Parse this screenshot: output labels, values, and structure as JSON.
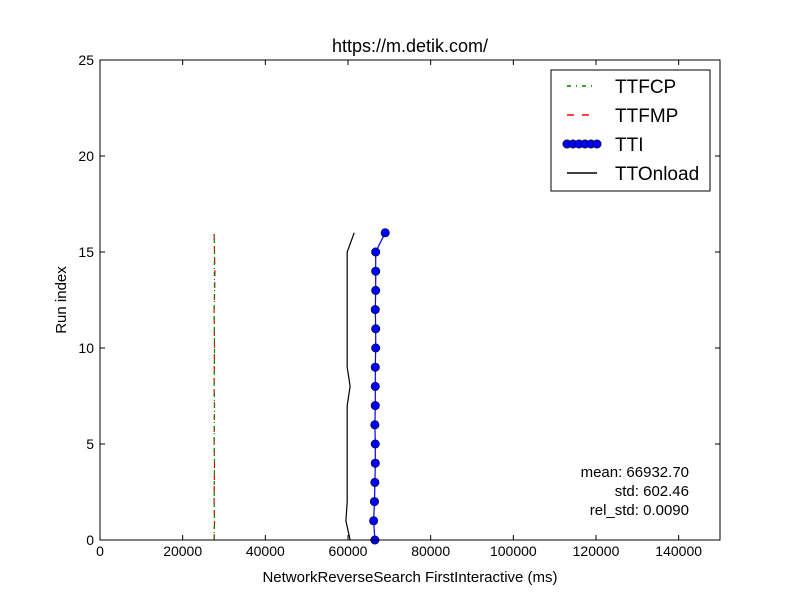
{
  "chart_data": {
    "type": "line",
    "title": "https://m.detik.com/",
    "xlabel": "NetworkReverseSearch FirstInteractive (ms)",
    "ylabel": "Run index",
    "xlim": [
      0,
      150000
    ],
    "ylim": [
      0,
      25
    ],
    "xticks": [
      0,
      20000,
      40000,
      60000,
      80000,
      100000,
      120000,
      140000
    ],
    "xtick_labels": [
      "0",
      "20000",
      "40000",
      "60000",
      "80000",
      "100000",
      "120000",
      "140000"
    ],
    "yticks": [
      0,
      5,
      10,
      15,
      20,
      25
    ],
    "ytick_labels": [
      "0",
      "5",
      "10",
      "15",
      "20",
      "25"
    ],
    "grid": false,
    "legend_position": "top-right",
    "series": [
      {
        "name": "TTFCP",
        "color": "#008000",
        "style": "dash-dot",
        "x": [
          27600,
          27700,
          27600,
          27650,
          27700,
          27600,
          27650,
          27700,
          27600,
          27650,
          27700,
          27650,
          27600,
          27700,
          27650,
          27700,
          27600
        ],
        "y": [
          0,
          1,
          2,
          3,
          4,
          5,
          6,
          7,
          8,
          9,
          10,
          11,
          12,
          13,
          14,
          15,
          16
        ]
      },
      {
        "name": "TTFMP",
        "color": "#ff0000",
        "style": "dashed",
        "x": [
          27600,
          27700,
          27600,
          27650,
          27700,
          27600,
          27650,
          27700,
          27600,
          27650,
          27700,
          27650,
          27600,
          27750,
          27800,
          27700,
          27600
        ],
        "y": [
          0,
          1,
          2,
          3,
          4,
          5,
          6,
          7,
          8,
          9,
          10,
          11,
          12,
          13,
          14,
          15,
          16
        ]
      },
      {
        "name": "TTI",
        "color": "#0000ff",
        "style": "solid-circles",
        "x": [
          66500,
          66200,
          66400,
          66500,
          66600,
          66600,
          66500,
          66600,
          66600,
          66600,
          66700,
          66700,
          66600,
          66700,
          66700,
          66700,
          69000
        ],
        "y": [
          0,
          1,
          2,
          3,
          4,
          5,
          6,
          7,
          8,
          9,
          10,
          11,
          12,
          13,
          14,
          15,
          16
        ]
      },
      {
        "name": "TTOnload",
        "color": "#000000",
        "style": "solid",
        "x": [
          60500,
          59500,
          59800,
          59800,
          59800,
          59800,
          59800,
          59800,
          60500,
          59800,
          59800,
          59800,
          59800,
          59800,
          59800,
          59800,
          61500
        ],
        "y": [
          0,
          1,
          2,
          3,
          4,
          5,
          6,
          7,
          8,
          9,
          10,
          11,
          12,
          13,
          14,
          15,
          16
        ]
      }
    ],
    "stats": {
      "mean": "mean: 66932.70",
      "std": "std: 602.46",
      "rel_std": "rel_std: 0.0090"
    }
  }
}
